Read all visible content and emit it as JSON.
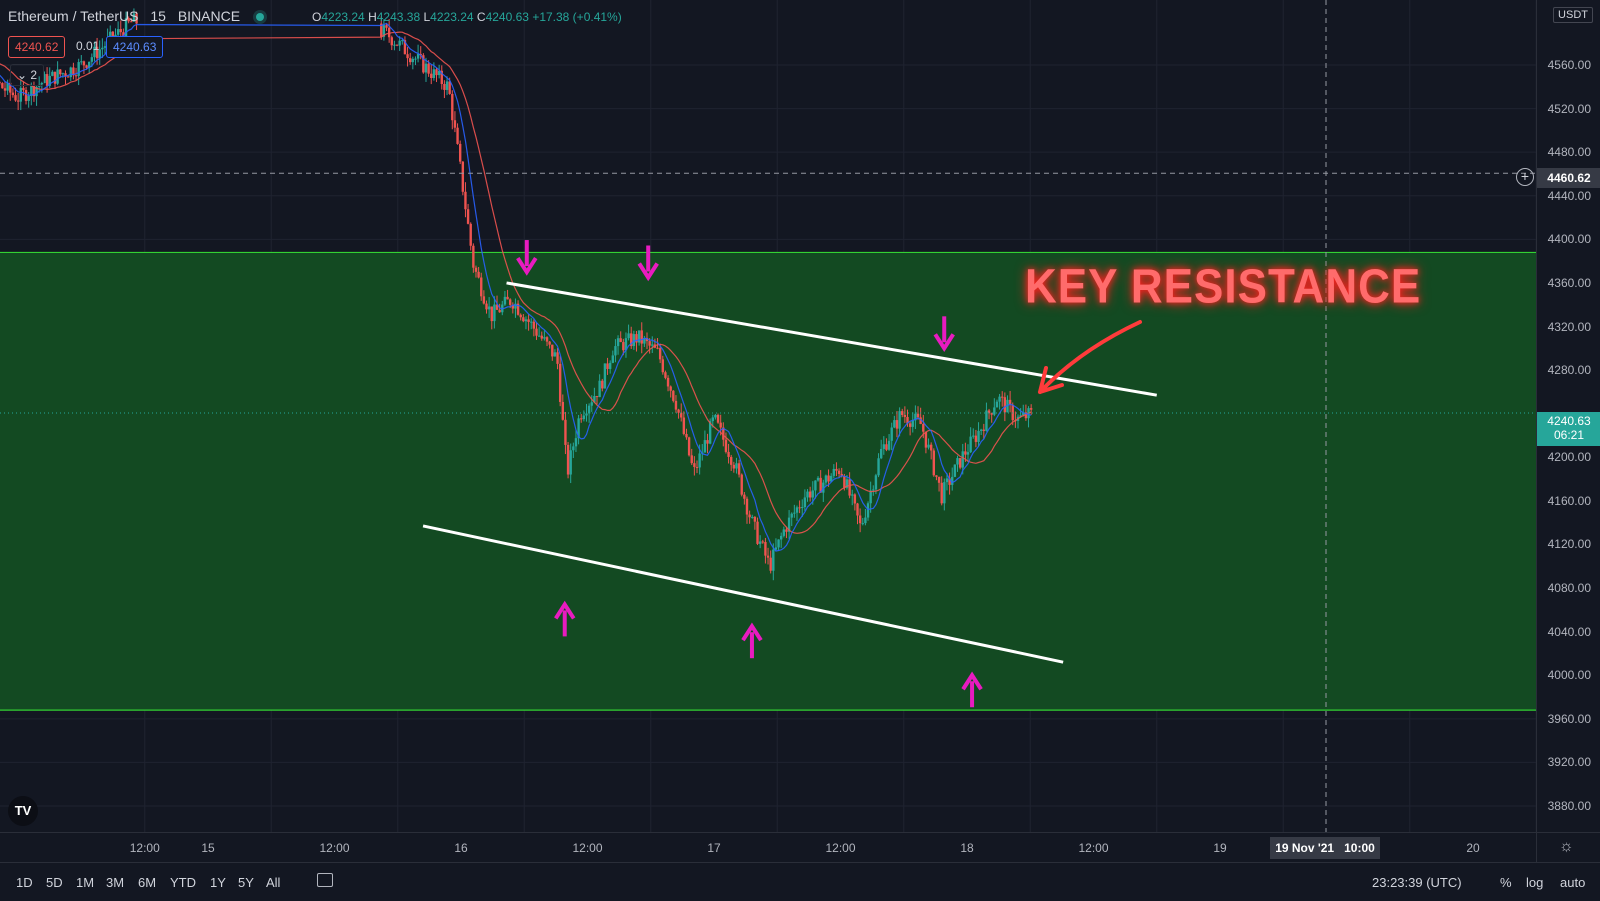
{
  "header": {
    "symbol": "Ethereum / TetherUS",
    "interval": "15",
    "exchange": "BINANCE",
    "ohlc": {
      "o_label": "O",
      "o": "4223.24",
      "h_label": "H",
      "h": "4243.38",
      "l_label": "L",
      "l": "4223.24",
      "c_label": "C",
      "c": "4240.63",
      "change": "+17.38 (+0.41%)"
    },
    "sell_price": "4240.62",
    "spread": "0.01",
    "buy_price": "4240.63",
    "indicators_toggle": "2"
  },
  "price_axis": {
    "currency": "USDT",
    "crosshair_price": "4460.62",
    "last_price": "4240.63",
    "countdown": "06:21",
    "ticks": [
      "4560.00",
      "4520.00",
      "4480.00",
      "4440.00",
      "4400.00",
      "4360.00",
      "4320.00",
      "4280.00",
      "4200.00",
      "4160.00",
      "4120.00",
      "4080.00",
      "4040.00",
      "4000.00",
      "3960.00",
      "3920.00",
      "3880.00"
    ]
  },
  "time_axis": {
    "ticks": [
      "12:00",
      "15",
      "12:00",
      "16",
      "12:00",
      "17",
      "12:00",
      "18",
      "12:00",
      "19",
      "20"
    ],
    "crosshair_date": "19 Nov '21",
    "crosshair_time": "10:00"
  },
  "bottom_bar": {
    "ranges": [
      "1D",
      "5D",
      "1M",
      "3M",
      "6M",
      "YTD",
      "1Y",
      "5Y",
      "All"
    ],
    "clock": "23:23:39 (UTC)",
    "percent": "%",
    "log": "log",
    "auto": "auto"
  },
  "annotation": {
    "text": "KEY RESISTANCE"
  },
  "colors": {
    "background": "#131722",
    "zone_fill": "#134a22",
    "zone_line": "#33d133",
    "up": "#26a69a",
    "down": "#ef5350",
    "arrow": "#e81bc0",
    "annotation": "#ff3b3b"
  },
  "chart_data": {
    "type": "candlestick",
    "ylim": [
      3870,
      4585
    ],
    "x_ticks": [
      "12:00",
      "15",
      "12:00",
      "16",
      "12:00",
      "17",
      "12:00",
      "18",
      "12:00",
      "19",
      "20"
    ],
    "resistance_zone": [
      3968,
      4388
    ],
    "crosshair": {
      "price": 4460.62,
      "time": "19 Nov '21 10:00"
    },
    "last_price": 4240.63,
    "channel_upper": [
      {
        "t": 16.18,
        "p": 4360
      },
      {
        "t": 18.75,
        "p": 4257
      }
    ],
    "channel_lower": [
      {
        "t": 15.85,
        "p": 4137
      },
      {
        "t": 18.38,
        "p": 4012
      }
    ],
    "ma_fast_color": "#2962ff",
    "ma_slow_color": "#ef5350",
    "price_path": [
      {
        "t": 14.0,
        "p": 4585
      },
      {
        "t": 14.15,
        "p": 4545
      },
      {
        "t": 14.25,
        "p": 4530
      },
      {
        "t": 14.35,
        "p": 4545
      },
      {
        "t": 14.5,
        "p": 4560
      },
      {
        "t": 14.7,
        "p": 4600
      },
      {
        "t": 15.7,
        "p": 4590
      },
      {
        "t": 15.8,
        "p": 4570
      },
      {
        "t": 15.95,
        "p": 4540
      },
      {
        "t": 16.0,
        "p": 4460
      },
      {
        "t": 16.05,
        "p": 4375
      },
      {
        "t": 16.12,
        "p": 4330
      },
      {
        "t": 16.2,
        "p": 4345
      },
      {
        "t": 16.3,
        "p": 4315
      },
      {
        "t": 16.38,
        "p": 4290
      },
      {
        "t": 16.42,
        "p": 4185
      },
      {
        "t": 16.47,
        "p": 4240
      },
      {
        "t": 16.55,
        "p": 4265
      },
      {
        "t": 16.6,
        "p": 4300
      },
      {
        "t": 16.7,
        "p": 4310
      },
      {
        "t": 16.78,
        "p": 4295
      },
      {
        "t": 16.85,
        "p": 4250
      },
      {
        "t": 16.92,
        "p": 4185
      },
      {
        "t": 17.0,
        "p": 4235
      },
      {
        "t": 17.08,
        "p": 4195
      },
      {
        "t": 17.15,
        "p": 4140
      },
      {
        "t": 17.22,
        "p": 4100
      },
      {
        "t": 17.28,
        "p": 4135
      },
      {
        "t": 17.36,
        "p": 4165
      },
      {
        "t": 17.42,
        "p": 4175
      },
      {
        "t": 17.5,
        "p": 4190
      },
      {
        "t": 17.58,
        "p": 4135
      },
      {
        "t": 17.66,
        "p": 4205
      },
      {
        "t": 17.74,
        "p": 4240
      },
      {
        "t": 17.82,
        "p": 4230
      },
      {
        "t": 17.9,
        "p": 4165
      },
      {
        "t": 17.98,
        "p": 4200
      },
      {
        "t": 18.05,
        "p": 4225
      },
      {
        "t": 18.12,
        "p": 4255
      },
      {
        "t": 18.2,
        "p": 4235
      },
      {
        "t": 18.26,
        "p": 4240
      }
    ],
    "arrows_down": [
      {
        "t": 16.26,
        "p": 4370
      },
      {
        "t": 16.74,
        "p": 4365
      },
      {
        "t": 17.91,
        "p": 4300
      }
    ],
    "arrows_up": [
      {
        "t": 16.41,
        "p": 4065
      },
      {
        "t": 17.15,
        "p": 4045
      },
      {
        "t": 18.02,
        "p": 4000
      }
    ]
  }
}
